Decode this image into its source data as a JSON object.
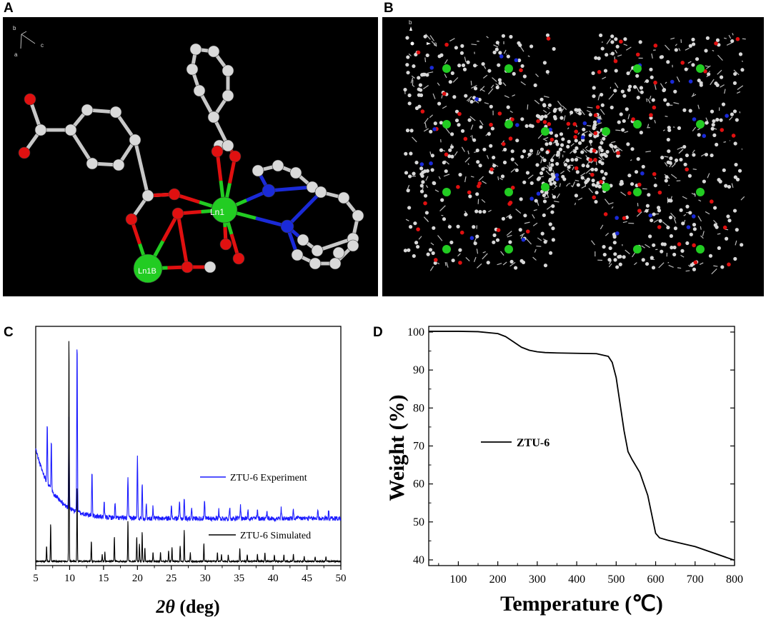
{
  "panels": {
    "a": {
      "letter": "A",
      "atom_labels": [
        "Ln1",
        "Ln1B"
      ],
      "axes": [
        "b",
        "a",
        "c"
      ]
    },
    "b": {
      "letter": "B",
      "axes": [
        "b",
        "a"
      ]
    },
    "c": {
      "letter": "C"
    },
    "d": {
      "letter": "D"
    }
  },
  "colors": {
    "background_crystal": "#000000",
    "lanthanide": "#22cc22",
    "oxygen": "#e01010",
    "nitrogen": "#1a2ad8",
    "carbon": "#d9d9d9",
    "experiment_line": "#1a1aff",
    "simulated_line": "#000000"
  },
  "chart_data": [
    {
      "type": "line",
      "xlabel_italic": "2θ",
      "xlabel_rest": " (deg)",
      "xlim": [
        5,
        50
      ],
      "xticks": [
        "5",
        "10",
        "15",
        "20",
        "25",
        "30",
        "35",
        "40",
        "45",
        "50"
      ],
      "y_ticks_shown": false,
      "series": [
        {
          "name": "ZTU-6 Experiment",
          "baseline_start": 0.55,
          "baseline_end": 0.19,
          "peaks": [
            [
              6.7,
              0.32
            ],
            [
              7.3,
              0.27
            ],
            [
              9.9,
              0.52
            ],
            [
              11.1,
              0.9
            ],
            [
              13.3,
              0.24
            ],
            [
              15.1,
              0.07
            ],
            [
              16.7,
              0.08
            ],
            [
              18.6,
              0.22
            ],
            [
              20.0,
              0.32
            ],
            [
              20.7,
              0.19
            ],
            [
              21.3,
              0.07
            ],
            [
              22.3,
              0.06
            ],
            [
              25.0,
              0.07
            ],
            [
              26.2,
              0.09
            ],
            [
              26.9,
              0.11
            ],
            [
              28.0,
              0.06
            ],
            [
              29.9,
              0.09
            ],
            [
              32.0,
              0.05
            ],
            [
              33.6,
              0.06
            ],
            [
              35.2,
              0.07
            ],
            [
              36.3,
              0.05
            ],
            [
              37.7,
              0.04
            ],
            [
              39.1,
              0.05
            ],
            [
              41.2,
              0.05
            ],
            [
              43.0,
              0.04
            ],
            [
              46.6,
              0.05
            ],
            [
              48.2,
              0.04
            ]
          ]
        },
        {
          "name": "ZTU-6 Simulated",
          "peaks": [
            [
              6.6,
              0.07
            ],
            [
              7.2,
              0.17
            ],
            [
              9.9,
              1.0
            ],
            [
              11.1,
              0.33
            ],
            [
              13.2,
              0.09
            ],
            [
              14.8,
              0.03
            ],
            [
              15.2,
              0.04
            ],
            [
              16.6,
              0.11
            ],
            [
              18.6,
              0.18
            ],
            [
              19.9,
              0.11
            ],
            [
              20.3,
              0.08
            ],
            [
              20.7,
              0.13
            ],
            [
              21.1,
              0.06
            ],
            [
              22.3,
              0.04
            ],
            [
              23.4,
              0.04
            ],
            [
              24.6,
              0.05
            ],
            [
              25.1,
              0.06
            ],
            [
              26.3,
              0.07
            ],
            [
              26.9,
              0.14
            ],
            [
              27.8,
              0.04
            ],
            [
              29.8,
              0.08
            ],
            [
              31.8,
              0.04
            ],
            [
              32.4,
              0.03
            ],
            [
              33.4,
              0.03
            ],
            [
              35.1,
              0.06
            ],
            [
              36.2,
              0.03
            ],
            [
              37.7,
              0.03
            ],
            [
              38.8,
              0.04
            ],
            [
              40.2,
              0.03
            ],
            [
              41.6,
              0.03
            ],
            [
              43.0,
              0.03
            ],
            [
              44.6,
              0.02
            ],
            [
              46.2,
              0.02
            ],
            [
              47.8,
              0.02
            ]
          ]
        }
      ],
      "legend": [
        {
          "label": "ZTU-6 Experiment",
          "color": "#1a1aff"
        },
        {
          "label": "ZTU-6 Simulated",
          "color": "#000000"
        }
      ]
    },
    {
      "type": "line",
      "xlabel": "Temperature (℃)",
      "ylabel": "Weight (%)",
      "xlim": [
        25,
        800
      ],
      "ylim": [
        38.5,
        101.5
      ],
      "xticks": [
        100,
        200,
        300,
        400,
        500,
        600,
        700,
        800
      ],
      "yticks": [
        40,
        50,
        60,
        70,
        80,
        90,
        100
      ],
      "series": [
        {
          "name": "ZTU-6",
          "x": [
            25,
            100,
            150,
            200,
            220,
            240,
            260,
            280,
            300,
            320,
            350,
            400,
            450,
            480,
            490,
            500,
            510,
            520,
            530,
            540,
            560,
            580,
            590,
            600,
            610,
            630,
            700,
            800
          ],
          "y": [
            100.2,
            100.2,
            100.1,
            99.6,
            98.8,
            97.4,
            96.0,
            95.2,
            94.8,
            94.6,
            94.5,
            94.4,
            94.3,
            93.6,
            92.0,
            88.0,
            81.0,
            74.0,
            68.5,
            66.5,
            63.0,
            57.0,
            52.0,
            47.0,
            45.8,
            45.2,
            43.5,
            39.9
          ]
        }
      ],
      "legend": [
        {
          "label": "ZTU-6",
          "color": "#000000"
        }
      ]
    }
  ]
}
